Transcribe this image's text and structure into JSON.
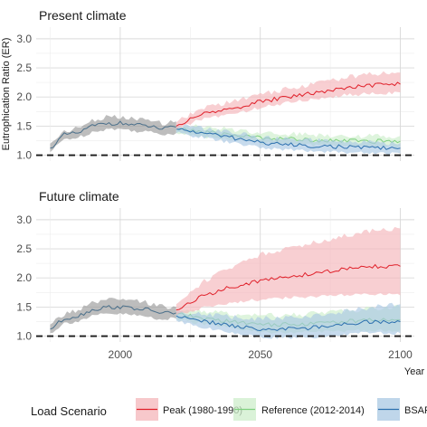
{
  "chart_data": {
    "type": "line",
    "ylabel": "Eutrophication Ratio (ER)",
    "xlabel": "Year",
    "xlim": [
      1970,
      2105
    ],
    "ylim": [
      0.9,
      3.2
    ],
    "x_ticks": [
      2000,
      2050,
      2100
    ],
    "y_ticks": [
      1.0,
      1.5,
      2.0,
      2.5,
      3.0
    ],
    "y_tick_labels": [
      "1.0",
      "1.5",
      "2.0",
      "2.5",
      "3.0"
    ],
    "reference_line": 1.0,
    "grid": true,
    "legend": {
      "title": "Load Scenario",
      "position": "bottom",
      "entries": [
        "Peak (1980-1990)",
        "Reference (2012-2014)",
        "BSAP"
      ]
    },
    "colors": {
      "Peak (1980-1990)": {
        "line": "#e0202a",
        "band": "#f4b6ba"
      },
      "Reference (2012-2014)": {
        "line": "#7fd07f",
        "band": "#cdeecb"
      },
      "BSAP": {
        "line": "#2b6fae",
        "band": "#a9c8e3"
      },
      "Historical": {
        "line": "#4a6f8a",
        "band": "#9a9a9a"
      }
    },
    "panels": [
      {
        "title": "Present climate",
        "historical": {
          "x": [
            1975,
            1980,
            1985,
            1990,
            1995,
            2000,
            2005,
            2010,
            2015,
            2020
          ],
          "y": [
            1.12,
            1.35,
            1.38,
            1.5,
            1.55,
            1.55,
            1.52,
            1.5,
            1.45,
            1.48
          ],
          "lower": [
            1.05,
            1.28,
            1.3,
            1.4,
            1.45,
            1.45,
            1.42,
            1.4,
            1.36,
            1.38
          ],
          "upper": [
            1.2,
            1.42,
            1.46,
            1.6,
            1.65,
            1.65,
            1.62,
            1.6,
            1.55,
            1.58
          ]
        },
        "series": [
          {
            "name": "Peak (1980-1990)",
            "x": [
              2020,
              2030,
              2040,
              2050,
              2060,
              2070,
              2080,
              2090,
              2100
            ],
            "y": [
              1.5,
              1.72,
              1.8,
              1.92,
              2.0,
              2.08,
              2.15,
              2.2,
              2.22
            ],
            "lower": [
              1.44,
              1.64,
              1.7,
              1.82,
              1.9,
              1.97,
              2.03,
              2.06,
              2.08
            ],
            "upper": [
              1.56,
              1.82,
              1.92,
              2.05,
              2.14,
              2.24,
              2.33,
              2.4,
              2.42
            ]
          },
          {
            "name": "Reference (2012-2014)",
            "x": [
              2020,
              2030,
              2040,
              2050,
              2060,
              2070,
              2080,
              2090,
              2100
            ],
            "y": [
              1.45,
              1.4,
              1.35,
              1.3,
              1.28,
              1.26,
              1.25,
              1.24,
              1.24
            ],
            "lower": [
              1.38,
              1.32,
              1.26,
              1.21,
              1.19,
              1.17,
              1.16,
              1.15,
              1.15
            ],
            "upper": [
              1.52,
              1.48,
              1.44,
              1.39,
              1.37,
              1.35,
              1.34,
              1.33,
              1.33
            ]
          },
          {
            "name": "BSAP",
            "x": [
              2020,
              2030,
              2040,
              2050,
              2060,
              2070,
              2080,
              2090,
              2100
            ],
            "y": [
              1.45,
              1.38,
              1.3,
              1.22,
              1.18,
              1.16,
              1.14,
              1.13,
              1.12
            ],
            "lower": [
              1.38,
              1.3,
              1.21,
              1.13,
              1.09,
              1.07,
              1.05,
              1.04,
              1.03
            ],
            "upper": [
              1.52,
              1.46,
              1.39,
              1.31,
              1.27,
              1.25,
              1.23,
              1.22,
              1.21
            ]
          }
        ]
      },
      {
        "title": "Future climate",
        "historical": {
          "x": [
            1975,
            1980,
            1985,
            1990,
            1995,
            2000,
            2005,
            2010,
            2015,
            2020
          ],
          "y": [
            1.12,
            1.3,
            1.35,
            1.45,
            1.5,
            1.5,
            1.48,
            1.45,
            1.4,
            1.4
          ],
          "lower": [
            1.05,
            1.22,
            1.26,
            1.34,
            1.38,
            1.38,
            1.36,
            1.33,
            1.29,
            1.3
          ],
          "upper": [
            1.2,
            1.38,
            1.45,
            1.56,
            1.62,
            1.62,
            1.6,
            1.57,
            1.51,
            1.5
          ]
        },
        "series": [
          {
            "name": "Peak (1980-1990)",
            "x": [
              2020,
              2030,
              2040,
              2050,
              2060,
              2070,
              2080,
              2090,
              2100
            ],
            "y": [
              1.45,
              1.7,
              1.85,
              1.95,
              2.02,
              2.08,
              2.15,
              2.2,
              2.2
            ],
            "lower": [
              1.36,
              1.5,
              1.58,
              1.63,
              1.66,
              1.68,
              1.7,
              1.72,
              1.7
            ],
            "upper": [
              1.55,
              1.95,
              2.2,
              2.4,
              2.52,
              2.62,
              2.72,
              2.82,
              2.85
            ]
          },
          {
            "name": "Reference (2012-2014)",
            "x": [
              2020,
              2030,
              2040,
              2050,
              2060,
              2070,
              2080,
              2090,
              2100
            ],
            "y": [
              1.38,
              1.3,
              1.25,
              1.2,
              1.2,
              1.22,
              1.25,
              1.28,
              1.28
            ],
            "lower": [
              1.3,
              1.2,
              1.13,
              1.07,
              1.06,
              1.07,
              1.09,
              1.1,
              1.1
            ],
            "upper": [
              1.46,
              1.42,
              1.38,
              1.35,
              1.36,
              1.39,
              1.43,
              1.48,
              1.5
            ]
          },
          {
            "name": "BSAP",
            "x": [
              2020,
              2030,
              2040,
              2050,
              2060,
              2070,
              2080,
              2090,
              2100
            ],
            "y": [
              1.35,
              1.25,
              1.18,
              1.12,
              1.12,
              1.15,
              1.2,
              1.25,
              1.25
            ],
            "lower": [
              1.27,
              1.14,
              1.05,
              0.98,
              0.97,
              0.99,
              1.03,
              1.06,
              1.05
            ],
            "upper": [
              1.43,
              1.38,
              1.33,
              1.3,
              1.32,
              1.36,
              1.42,
              1.5,
              1.55
            ]
          }
        ]
      }
    ]
  }
}
